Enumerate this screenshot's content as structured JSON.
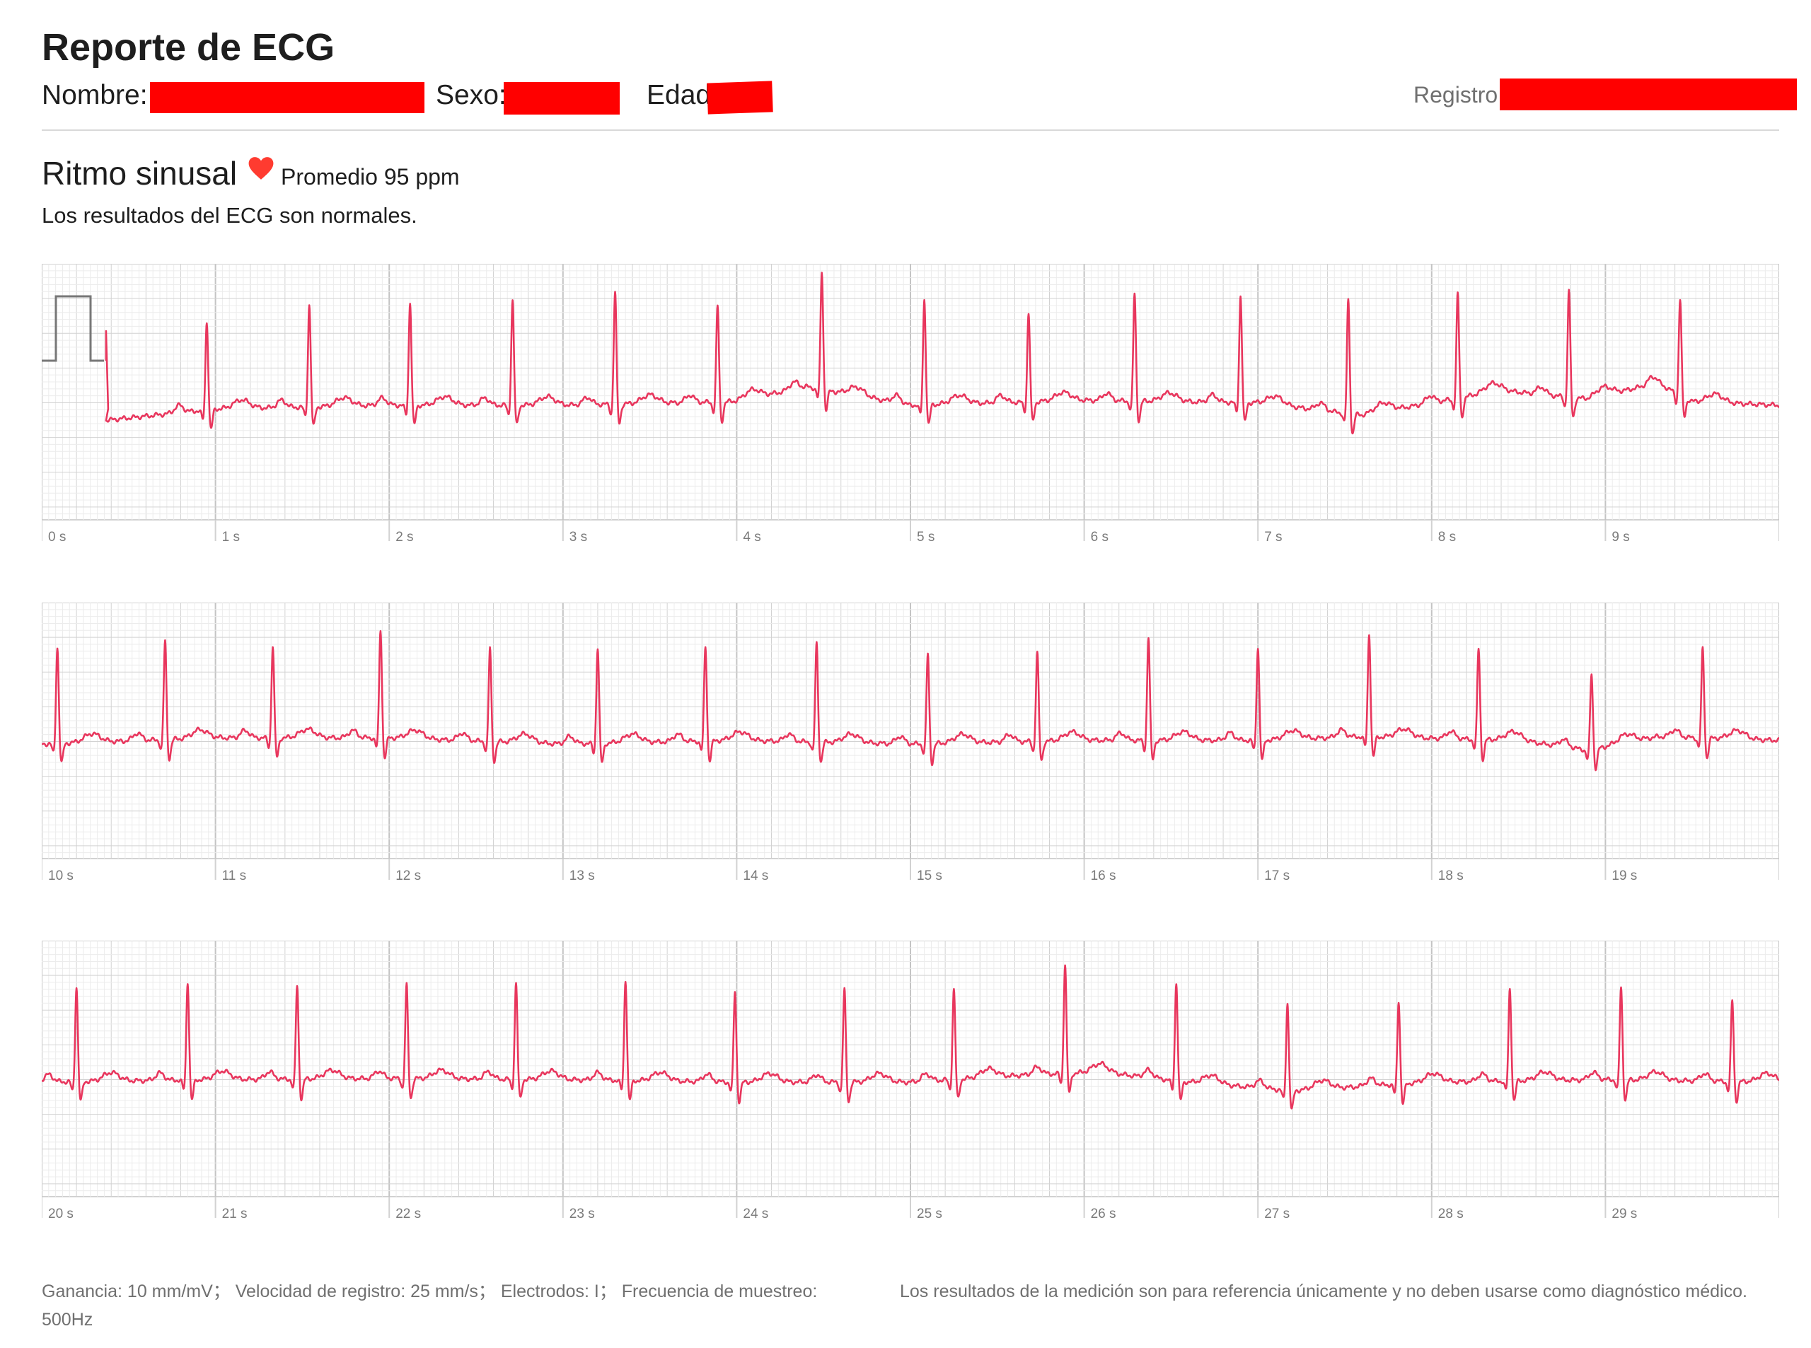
{
  "report": {
    "title": "Reporte de ECG",
    "name_label": "Nombre:",
    "sex_label": "Sexo:",
    "age_label": "Edad",
    "record_label": "Registro"
  },
  "result": {
    "rhythm": "Ritmo sinusal",
    "average": "Promedio 95 ppm",
    "summary": "Los resultados del ECG son normales."
  },
  "footer": {
    "settings": "Ganancia: 10 mm/mV；  Velocidad de registro: 25 mm/s；  Electrodos: I；  Frecuencia de muestreo: 500Hz",
    "disclaimer": "Los resultados de la medición son para referencia únicamente y no deben usarse como diagnóstico médico."
  },
  "colors": {
    "trace": "#e8365d",
    "heart": "#ff3b30",
    "grid_minor": "#ececec",
    "grid_major": "#d2d2d2",
    "grid_second": "#c4c4c4",
    "calibration": "#777777",
    "redaction": "#ff0000"
  },
  "chart_data": [
    {
      "type": "line",
      "x_range": [
        0,
        10
      ],
      "x_unit": "s",
      "tick_labels": [
        "0 s",
        "1 s",
        "2 s",
        "3 s",
        "4 s",
        "5 s",
        "6 s",
        "7 s",
        "8 s",
        "9 s"
      ],
      "calibration_pulse": true,
      "beat_times": [
        0.95,
        1.54,
        2.12,
        2.71,
        3.3,
        3.89,
        4.49,
        5.08,
        5.68,
        6.29,
        6.9,
        7.52,
        8.15,
        8.79,
        9.43
      ],
      "beat_heights": [
        0.72,
        0.83,
        0.84,
        0.85,
        0.91,
        0.78,
        0.96,
        0.86,
        0.72,
        0.87,
        0.87,
        0.92,
        0.85,
        0.86,
        0.78
      ],
      "baseline_wander": [
        [
          0.38,
          -0.12
        ],
        [
          1.0,
          -0.03
        ],
        [
          2.0,
          0.0
        ],
        [
          3.0,
          0.0
        ],
        [
          4.0,
          0.03
        ],
        [
          4.4,
          0.15
        ],
        [
          5.0,
          0.0
        ],
        [
          6.0,
          0.04
        ],
        [
          7.0,
          0.02
        ],
        [
          7.6,
          -0.08
        ],
        [
          8.4,
          0.12
        ],
        [
          8.9,
          0.05
        ],
        [
          9.5,
          0.03
        ],
        [
          9.3,
          0.18
        ],
        [
          10.0,
          0.0
        ]
      ]
    },
    {
      "type": "line",
      "x_range": [
        10,
        20
      ],
      "x_unit": "s",
      "tick_labels": [
        "10 s",
        "11 s",
        "12 s",
        "13 s",
        "14 s",
        "15 s",
        "16 s",
        "17 s",
        "18 s",
        "19 s"
      ],
      "calibration_pulse": false,
      "beat_times": [
        10.09,
        10.71,
        11.33,
        11.95,
        12.58,
        13.2,
        13.82,
        14.46,
        15.1,
        15.73,
        16.37,
        17.0,
        17.64,
        18.27,
        18.92,
        19.56
      ],
      "beat_heights": [
        0.78,
        0.8,
        0.75,
        0.88,
        0.76,
        0.78,
        0.77,
        0.8,
        0.73,
        0.72,
        0.84,
        0.76,
        0.84,
        0.74,
        0.62,
        0.73
      ],
      "baseline_wander": [
        [
          10.0,
          0.0
        ],
        [
          11.0,
          0.05
        ],
        [
          12.0,
          0.05
        ],
        [
          13.0,
          0.0
        ],
        [
          14.0,
          0.03
        ],
        [
          15.0,
          0.0
        ],
        [
          16.0,
          0.03
        ],
        [
          17.0,
          0.03
        ],
        [
          17.6,
          0.06
        ],
        [
          18.5,
          0.03
        ],
        [
          18.9,
          -0.05
        ],
        [
          19.3,
          0.06
        ],
        [
          20.0,
          0.03
        ]
      ]
    },
    {
      "type": "line",
      "x_range": [
        20,
        30
      ],
      "x_unit": "s",
      "tick_labels": [
        "20 s",
        "21 s",
        "22 s",
        "23 s",
        "24 s",
        "25 s",
        "26 s",
        "27 s",
        "28 s",
        "29 s"
      ],
      "calibration_pulse": false,
      "beat_times": [
        20.2,
        20.84,
        21.47,
        22.1,
        22.73,
        23.36,
        23.99,
        24.62,
        25.25,
        25.89,
        26.53,
        27.17,
        27.81,
        28.45,
        29.09,
        29.73
      ],
      "beat_heights": [
        0.77,
        0.8,
        0.76,
        0.76,
        0.78,
        0.82,
        0.74,
        0.75,
        0.73,
        0.89,
        0.8,
        0.71,
        0.68,
        0.75,
        0.75,
        0.66
      ],
      "baseline_wander": [
        [
          20.0,
          0.0
        ],
        [
          21.0,
          0.02
        ],
        [
          22.0,
          0.03
        ],
        [
          23.0,
          0.02
        ],
        [
          24.0,
          0.0
        ],
        [
          25.0,
          0.0
        ],
        [
          25.7,
          0.06
        ],
        [
          26.1,
          0.08
        ],
        [
          26.6,
          0.0
        ],
        [
          27.2,
          -0.07
        ],
        [
          28.0,
          0.0
        ],
        [
          29.0,
          0.02
        ],
        [
          30.0,
          0.0
        ]
      ]
    }
  ]
}
